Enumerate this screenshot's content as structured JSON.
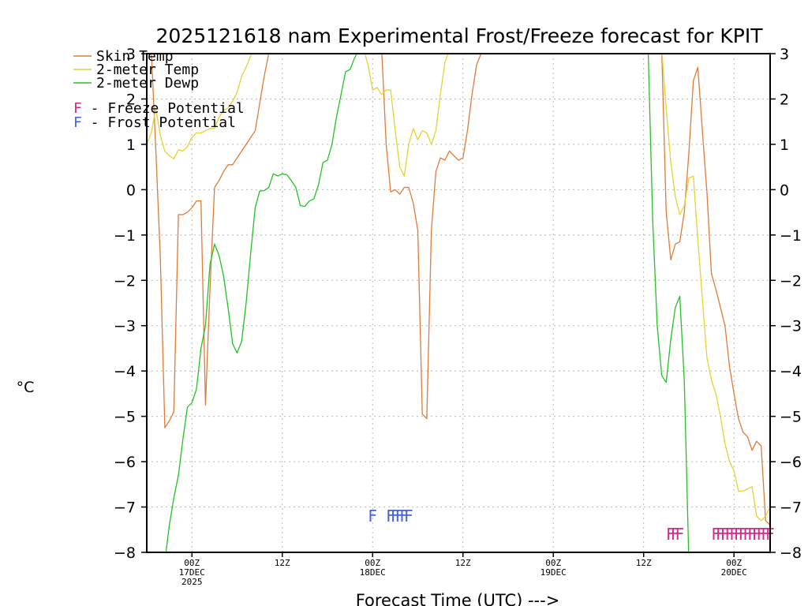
{
  "chart_data": {
    "type": "line",
    "title": "2025121618 nam Experimental Frost/Freeze forecast for KPIT",
    "ylabel": "°C",
    "xlabel": "Forecast Time (UTC) --->",
    "ylim": [
      -8,
      3
    ],
    "yticks": [
      3,
      2,
      1,
      0,
      -1,
      -2,
      -3,
      -4,
      -5,
      -6,
      -7,
      -8
    ],
    "xlim": [
      -10,
      128
    ],
    "x_unit": "hours after 17DEC 00Z",
    "xticks": [
      {
        "x": 0,
        "lines": [
          "00Z",
          "17DEC",
          "2025"
        ]
      },
      {
        "x": 20,
        "lines": [
          "12Z"
        ]
      },
      {
        "x": 40,
        "lines": [
          "00Z",
          "18DEC"
        ]
      },
      {
        "x": 60,
        "lines": [
          "12Z"
        ]
      },
      {
        "x": 80,
        "lines": [
          "00Z",
          "19DEC"
        ]
      },
      {
        "x": 100,
        "lines": [
          "12Z"
        ]
      },
      {
        "x": 120,
        "lines": [
          "00Z",
          "20DEC"
        ]
      }
    ],
    "grid": true,
    "series": [
      {
        "name": "Skin Temp",
        "color": "#e07b39",
        "points": [
          [
            -10,
            3.0
          ],
          [
            -9,
            3.1
          ],
          [
            -8,
            0.9
          ],
          [
            -7,
            -1.5
          ],
          [
            -6,
            -5.25
          ],
          [
            -5,
            -5.1
          ],
          [
            -4,
            -4.9
          ],
          [
            -3,
            -0.55
          ],
          [
            -2,
            -0.55
          ],
          [
            -1,
            -0.5
          ],
          [
            0,
            -0.4
          ],
          [
            1,
            -0.25
          ],
          [
            2,
            -0.25
          ],
          [
            3,
            -4.75
          ],
          [
            4,
            -2.2
          ],
          [
            5,
            0.05
          ],
          [
            6,
            0.2
          ],
          [
            7,
            0.4
          ],
          [
            8,
            0.55
          ],
          [
            9,
            0.55
          ],
          [
            10,
            0.7
          ],
          [
            11,
            0.85
          ],
          [
            12,
            1.0
          ],
          [
            13,
            1.15
          ],
          [
            14,
            1.3
          ],
          [
            15,
            1.9
          ],
          [
            16,
            2.5
          ],
          [
            17,
            3.0
          ],
          [
            18,
            3.1
          ],
          [
            42,
            3.1
          ],
          [
            43,
            1.0
          ],
          [
            44,
            -0.05
          ],
          [
            45,
            0.0
          ],
          [
            46,
            -0.1
          ],
          [
            47,
            0.05
          ],
          [
            48,
            0.05
          ],
          [
            49,
            -0.3
          ],
          [
            50,
            -0.9
          ],
          [
            51,
            -4.95
          ],
          [
            52,
            -5.05
          ],
          [
            53,
            -0.9
          ],
          [
            54,
            0.4
          ],
          [
            55,
            0.7
          ],
          [
            56,
            0.65
          ],
          [
            57,
            0.85
          ],
          [
            58,
            0.75
          ],
          [
            59,
            0.65
          ],
          [
            60,
            0.7
          ],
          [
            61,
            1.3
          ],
          [
            62,
            2.1
          ],
          [
            63,
            2.75
          ],
          [
            64,
            3.0
          ],
          [
            65,
            3.1
          ],
          [
            104,
            3.1
          ],
          [
            105,
            -0.5
          ],
          [
            106,
            -1.55
          ],
          [
            107,
            -1.2
          ],
          [
            108,
            -1.15
          ],
          [
            109,
            -0.5
          ],
          [
            110,
            0.8
          ],
          [
            111,
            2.4
          ],
          [
            112,
            2.7
          ],
          [
            113,
            1.3
          ],
          [
            114,
            -0.05
          ],
          [
            115,
            -1.85
          ],
          [
            116,
            -2.2
          ],
          [
            117,
            -2.6
          ],
          [
            118,
            -3.0
          ],
          [
            119,
            -3.9
          ],
          [
            120,
            -4.5
          ],
          [
            121,
            -5.05
          ],
          [
            122,
            -5.35
          ],
          [
            123,
            -5.45
          ],
          [
            124,
            -5.75
          ],
          [
            125,
            -5.55
          ],
          [
            126,
            -5.65
          ],
          [
            127,
            -7.3
          ],
          [
            128,
            -7.4
          ]
        ]
      },
      {
        "name": "2-meter Temp",
        "color": "#e6d232",
        "points": [
          [
            -10,
            1.0
          ],
          [
            -9,
            1.25
          ],
          [
            -8,
            1.8
          ],
          [
            -7,
            1.2
          ],
          [
            -6,
            0.85
          ],
          [
            -5,
            0.75
          ],
          [
            -4,
            0.68
          ],
          [
            -3,
            0.88
          ],
          [
            -2,
            0.85
          ],
          [
            -1,
            0.95
          ],
          [
            0,
            1.15
          ],
          [
            1,
            1.25
          ],
          [
            2,
            1.25
          ],
          [
            3,
            1.3
          ],
          [
            4,
            1.35
          ],
          [
            5,
            1.35
          ],
          [
            6,
            1.6
          ],
          [
            7,
            1.75
          ],
          [
            8,
            1.8
          ],
          [
            9,
            1.95
          ],
          [
            10,
            2.15
          ],
          [
            11,
            2.5
          ],
          [
            12,
            2.7
          ],
          [
            13,
            2.95
          ],
          [
            14,
            3.1
          ],
          [
            38,
            3.1
          ],
          [
            39,
            2.75
          ],
          [
            40,
            2.2
          ],
          [
            41,
            2.25
          ],
          [
            42,
            2.1
          ],
          [
            43,
            2.2
          ],
          [
            44,
            2.2
          ],
          [
            45,
            1.3
          ],
          [
            46,
            0.5
          ],
          [
            47,
            0.3
          ],
          [
            48,
            1.0
          ],
          [
            49,
            1.35
          ],
          [
            50,
            1.1
          ],
          [
            51,
            1.3
          ],
          [
            52,
            1.25
          ],
          [
            53,
            1.0
          ],
          [
            54,
            1.3
          ],
          [
            55,
            2.1
          ],
          [
            56,
            2.8
          ],
          [
            57,
            3.1
          ],
          [
            104,
            3.1
          ],
          [
            105,
            1.8
          ],
          [
            106,
            0.6
          ],
          [
            107,
            -0.15
          ],
          [
            108,
            -0.55
          ],
          [
            109,
            -0.35
          ],
          [
            110,
            0.25
          ],
          [
            111,
            0.3
          ],
          [
            112,
            -1.1
          ],
          [
            113,
            -2.4
          ],
          [
            114,
            -3.7
          ],
          [
            115,
            -4.2
          ],
          [
            116,
            -4.5
          ],
          [
            117,
            -5.0
          ],
          [
            118,
            -5.6
          ],
          [
            119,
            -6.0
          ],
          [
            120,
            -6.2
          ],
          [
            121,
            -6.65
          ],
          [
            122,
            -6.65
          ],
          [
            123,
            -6.6
          ],
          [
            124,
            -6.55
          ],
          [
            125,
            -7.2
          ],
          [
            126,
            -7.3
          ],
          [
            127,
            -7.2
          ],
          [
            128,
            -7.0
          ]
        ]
      },
      {
        "name": "2-meter Dewp",
        "color": "#22c422",
        "points": [
          [
            -6,
            -8.2
          ],
          [
            -5,
            -7.4
          ],
          [
            -4,
            -6.8
          ],
          [
            -3,
            -6.3
          ],
          [
            -2,
            -5.5
          ],
          [
            -1,
            -4.8
          ],
          [
            0,
            -4.7
          ],
          [
            1,
            -4.4
          ],
          [
            2,
            -3.5
          ],
          [
            3,
            -3.0
          ],
          [
            4,
            -1.65
          ],
          [
            5,
            -1.2
          ],
          [
            6,
            -1.45
          ],
          [
            7,
            -1.9
          ],
          [
            8,
            -2.6
          ],
          [
            9,
            -3.4
          ],
          [
            10,
            -3.6
          ],
          [
            11,
            -3.35
          ],
          [
            12,
            -2.5
          ],
          [
            13,
            -1.4
          ],
          [
            14,
            -0.4
          ],
          [
            15,
            -0.03
          ],
          [
            16,
            -0.02
          ],
          [
            17,
            0.05
          ],
          [
            18,
            0.35
          ],
          [
            19,
            0.3
          ],
          [
            20,
            0.35
          ],
          [
            21,
            0.33
          ],
          [
            22,
            0.2
          ],
          [
            23,
            0.05
          ],
          [
            24,
            -0.35
          ],
          [
            25,
            -0.37
          ],
          [
            26,
            -0.25
          ],
          [
            27,
            -0.2
          ],
          [
            28,
            0.1
          ],
          [
            29,
            0.6
          ],
          [
            30,
            0.65
          ],
          [
            31,
            1.0
          ],
          [
            32,
            1.6
          ],
          [
            33,
            2.1
          ],
          [
            34,
            2.6
          ],
          [
            35,
            2.65
          ],
          [
            36,
            2.9
          ],
          [
            37,
            3.1
          ],
          [
            101,
            3.1
          ],
          [
            102,
            -0.7
          ],
          [
            103,
            -3.0
          ],
          [
            104,
            -4.1
          ],
          [
            105,
            -4.25
          ],
          [
            106,
            -3.3
          ],
          [
            107,
            -2.6
          ],
          [
            108,
            -2.35
          ],
          [
            109,
            -4.2
          ],
          [
            110,
            -8.2
          ]
        ]
      }
    ],
    "markers": [
      {
        "name": "Frost Potential",
        "color": "#4a62d8",
        "y": -7.2,
        "x": [
          40,
          44,
          45,
          46,
          47,
          48
        ]
      },
      {
        "name": "Freeze Potential",
        "color": "#d6288a",
        "y": -7.6,
        "x": [
          106,
          107,
          108,
          116,
          117,
          118,
          119,
          120,
          121,
          122,
          123,
          124,
          125,
          126,
          127,
          128
        ]
      }
    ],
    "legend": {
      "placement": "top-left",
      "lines": [
        {
          "label": "Skin Temp",
          "color": "#e07b39"
        },
        {
          "label": "2-meter Temp",
          "color": "#e6d232"
        },
        {
          "label": "2-meter Dewp",
          "color": "#22c422"
        }
      ],
      "potentials": [
        {
          "letter": "F",
          "text": "- Freeze Potential",
          "color": "#d6288a"
        },
        {
          "letter": "F",
          "text": "- Frost Potential",
          "color": "#4a62d8"
        }
      ]
    }
  }
}
